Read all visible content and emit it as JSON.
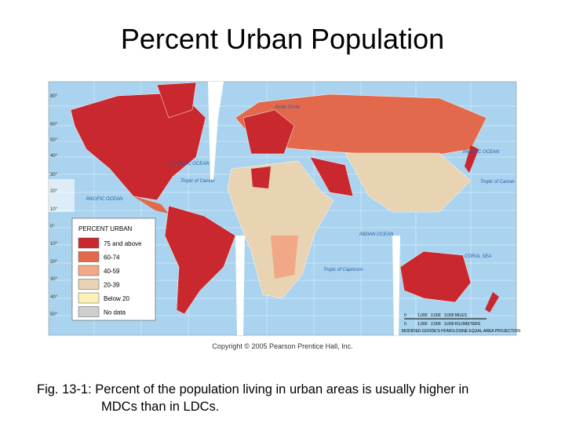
{
  "title": "Percent Urban Population",
  "legend": {
    "title": "PERCENT URBAN",
    "items": [
      {
        "label": "75 and above",
        "color": "#c8282e"
      },
      {
        "label": "60-74",
        "color": "#e2694c"
      },
      {
        "label": "40-59",
        "color": "#f0a887"
      },
      {
        "label": "20-39",
        "color": "#e8d3b2"
      },
      {
        "label": "Below 20",
        "color": "#fbf1b4"
      },
      {
        "label": "No data",
        "color": "#cfcfcf"
      }
    ]
  },
  "map_labels": {
    "arctic_circle": "Arctic Circle",
    "atlantic_ocean": "ATLANTIC OCEAN",
    "pacific_ocean_west": "PACIFIC OCEAN",
    "pacific_ocean_east": "PACIFIC OCEAN",
    "tropic_cancer_west": "Tropic of Cancer",
    "tropic_cancer_east": "Tropic of Cancer",
    "tropic_capricorn": "Tropic of Capricorn",
    "indian_ocean": "INDIAN OCEAN",
    "coral_sea": "CORAL SEA"
  },
  "latitudes": [
    "80°",
    "60°",
    "50°",
    "40°",
    "30°",
    "20°",
    "10°",
    "0°",
    "10°",
    "20°",
    "30°",
    "40°",
    "50°"
  ],
  "scale": {
    "miles": [
      "0",
      "1,000",
      "2,000",
      "3,000 MILES"
    ],
    "kilometers": [
      "0",
      "1,000",
      "2,000",
      "3,000 KILOMETERS"
    ]
  },
  "projection": "MODIFIED GOODE'S HOMOLOSINE EQUAL-AREA PROJECTION",
  "copyright": "Copyright © 2005 Pearson Prentice Hall, Inc.",
  "caption": [
    "Fig. 13-1: Percent of the population living in urban areas is usually higher in",
    "MDCs than in LDCs."
  ]
}
